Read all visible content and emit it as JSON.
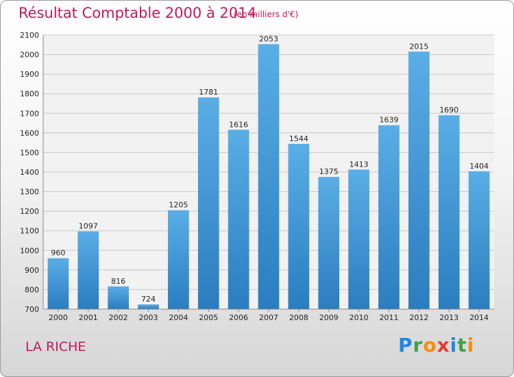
{
  "header": {
    "title": "Résultat Comptable 2000 à 2014",
    "subtitle": "(en milliers d'€)"
  },
  "footer": {
    "commune": "LA RICHE",
    "brand": "Proxiti",
    "brand_letters": [
      {
        "char": "P",
        "color": "#1e88e5"
      },
      {
        "char": "r",
        "color": "#43a047"
      },
      {
        "char": "o",
        "color": "#fb8c00"
      },
      {
        "char": "x",
        "color": "#e53935"
      },
      {
        "char": "i",
        "color": "#1e88e5"
      },
      {
        "char": "t",
        "color": "#43a047"
      },
      {
        "char": "i",
        "color": "#fb8c00"
      }
    ]
  },
  "chart_data": {
    "type": "bar",
    "title": "Résultat Comptable 2000 à 2014",
    "xlabel": "",
    "ylabel": "",
    "categories": [
      "2000",
      "2001",
      "2002",
      "2003",
      "2004",
      "2005",
      "2006",
      "2007",
      "2008",
      "2009",
      "2010",
      "2011",
      "2012",
      "2013",
      "2014"
    ],
    "values": [
      960,
      1097,
      816,
      724,
      1205,
      1781,
      1616,
      2053,
      1544,
      1375,
      1413,
      1639,
      2015,
      1690,
      1404
    ],
    "ylim": [
      700,
      2100
    ],
    "yticks": [
      700,
      800,
      900,
      1000,
      1100,
      1200,
      1300,
      1400,
      1500,
      1600,
      1700,
      1800,
      1900,
      2000,
      2100
    ],
    "grid": true,
    "legend": "none",
    "colors": {
      "bar_light": "#5aaee6",
      "bar_dark": "#2a7dbf",
      "grid": "#c8c8c8",
      "title": "#c2185b"
    }
  }
}
